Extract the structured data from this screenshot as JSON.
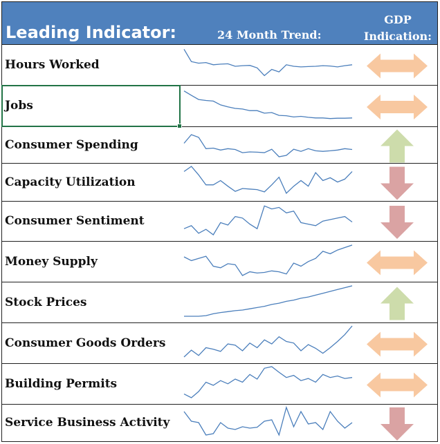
{
  "header": {
    "leading_label": "Leading Indicator:",
    "trend_label": "24 Month Trend:",
    "gdp_line1": "GDP",
    "gdp_line2": "Indication:",
    "background_color": "#4f81bd"
  },
  "colors": {
    "sideways": "#f8c8a0",
    "up": "#cddcab",
    "down": "#daa3a3",
    "sparkline": "#4a7ebb"
  },
  "rows": [
    {
      "label": "Hours Worked",
      "indication": "sideways",
      "trend": [
        0.95,
        0.55,
        0.5,
        0.52,
        0.45,
        0.47,
        0.48,
        0.4,
        0.42,
        0.43,
        0.35,
        0.1,
        0.3,
        0.22,
        0.45,
        0.4,
        0.38,
        0.39,
        0.4,
        0.42,
        0.41,
        0.38,
        0.42,
        0.45
      ]
    },
    {
      "label": "Jobs",
      "indication": "sideways",
      "trend": [
        0.92,
        0.78,
        0.65,
        0.62,
        0.6,
        0.48,
        0.42,
        0.37,
        0.35,
        0.3,
        0.3,
        0.22,
        0.24,
        0.15,
        0.14,
        0.1,
        0.12,
        0.09,
        0.07,
        0.07,
        0.05,
        0.06,
        0.06,
        0.07
      ]
    },
    {
      "label": "Consumer Spending",
      "indication": "up",
      "trend": [
        0.5,
        0.82,
        0.72,
        0.3,
        0.32,
        0.25,
        0.3,
        0.27,
        0.15,
        0.18,
        0.17,
        0.15,
        0.28,
        0.0,
        0.05,
        0.28,
        0.2,
        0.3,
        0.22,
        0.2,
        0.22,
        0.25,
        0.3,
        0.27
      ]
    },
    {
      "label": "Capacity Utilization",
      "indication": "down",
      "trend": [
        0.82,
        1.0,
        0.7,
        0.35,
        0.35,
        0.5,
        0.3,
        0.12,
        0.22,
        0.2,
        0.18,
        0.1,
        0.35,
        0.62,
        0.05,
        0.3,
        0.5,
        0.3,
        0.78,
        0.5,
        0.6,
        0.45,
        0.55,
        0.82
      ]
    },
    {
      "label": "Consumer Sentiment",
      "indication": "down",
      "trend": [
        0.2,
        0.3,
        0.05,
        0.18,
        0.0,
        0.4,
        0.32,
        0.6,
        0.55,
        0.35,
        0.2,
        0.95,
        0.85,
        0.9,
        0.72,
        0.78,
        0.4,
        0.35,
        0.3,
        0.45,
        0.5,
        0.55,
        0.6,
        0.42
      ]
    },
    {
      "label": "Money Supply",
      "indication": "sideways",
      "trend": [
        0.6,
        0.48,
        0.55,
        0.62,
        0.3,
        0.25,
        0.38,
        0.35,
        0.0,
        0.12,
        0.08,
        0.1,
        0.15,
        0.12,
        0.05,
        0.4,
        0.3,
        0.45,
        0.55,
        0.78,
        0.7,
        0.82,
        0.9,
        0.98
      ]
    },
    {
      "label": "Stock Prices",
      "indication": "up",
      "trend": [
        0.0,
        0.0,
        0.0,
        0.02,
        0.08,
        0.12,
        0.15,
        0.18,
        0.2,
        0.24,
        0.28,
        0.32,
        0.38,
        0.42,
        0.48,
        0.52,
        0.58,
        0.62,
        0.68,
        0.74,
        0.8,
        0.86,
        0.92,
        0.98
      ]
    },
    {
      "label": "Consumer Goods Orders",
      "indication": "sideways",
      "trend": [
        0.0,
        0.22,
        0.05,
        0.3,
        0.25,
        0.18,
        0.42,
        0.38,
        0.2,
        0.45,
        0.3,
        0.55,
        0.42,
        0.65,
        0.5,
        0.45,
        0.2,
        0.4,
        0.28,
        0.12,
        0.3,
        0.5,
        0.72,
        1.0
      ]
    },
    {
      "label": "Building Permits",
      "indication": "sideways",
      "trend": [
        0.12,
        0.0,
        0.2,
        0.5,
        0.4,
        0.55,
        0.45,
        0.6,
        0.5,
        0.75,
        0.6,
        0.95,
        1.0,
        0.82,
        0.65,
        0.72,
        0.55,
        0.62,
        0.5,
        0.75,
        0.65,
        0.7,
        0.62,
        0.65
      ]
    },
    {
      "label": "Service Business Activity",
      "indication": "down",
      "trend": [
        0.85,
        0.5,
        0.45,
        0.0,
        0.05,
        0.45,
        0.25,
        0.2,
        0.3,
        0.25,
        0.28,
        0.5,
        0.55,
        0.0,
        1.0,
        0.3,
        0.85,
        0.4,
        0.45,
        0.2,
        0.85,
        0.5,
        0.25,
        0.45
      ]
    }
  ]
}
